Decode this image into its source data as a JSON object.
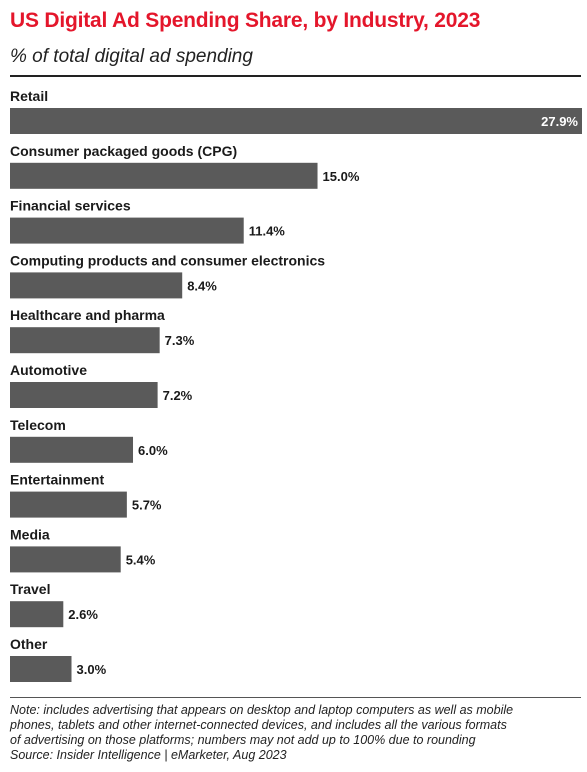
{
  "header": {
    "title": "US Digital Ad Spending Share, by Industry, 2023",
    "subtitle": "% of total digital ad spending"
  },
  "chart_data": {
    "type": "bar",
    "orientation": "horizontal",
    "title": "US Digital Ad Spending Share, by Industry, 2023",
    "subtitle": "% of total digital ad spending",
    "categories": [
      "Retail",
      "Consumer packaged goods (CPG)",
      "Financial services",
      "Computing products and consumer electronics",
      "Healthcare and pharma",
      "Automotive",
      "Telecom",
      "Entertainment",
      "Media",
      "Travel",
      "Other"
    ],
    "values": [
      27.9,
      15.0,
      11.4,
      8.4,
      7.3,
      7.2,
      6.0,
      5.7,
      5.4,
      2.6,
      3.0
    ],
    "value_labels": [
      "27.9%",
      "15.0%",
      "11.4%",
      "8.4%",
      "7.3%",
      "7.2%",
      "6.0%",
      "5.7%",
      "5.4%",
      "2.6%",
      "3.0%"
    ],
    "bar_color": "#5a5a5a",
    "grid": false,
    "legend": "none"
  },
  "footer": {
    "note_lines": [
      "Note: includes advertising that appears on desktop and laptop computers as well as mobile",
      "phones, tablets and other internet-connected devices, and includes all the various formats",
      "of advertising on those platforms; numbers may not add up to 100% due to rounding"
    ],
    "source": "Source: Insider Intelligence | eMarketer, Aug 2023"
  }
}
